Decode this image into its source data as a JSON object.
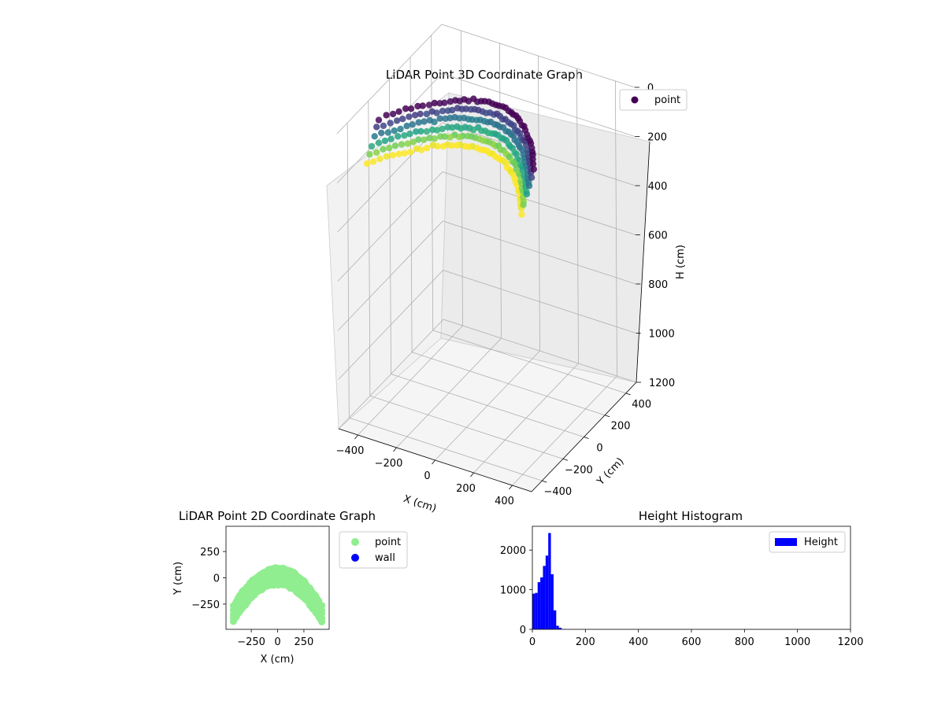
{
  "chart_data": [
    {
      "type": "scatter",
      "projection": "3d",
      "title": "LiDAR Point 3D Coordinate Graph",
      "xlabel": "X (cm)",
      "ylabel": "Y (cm)",
      "zlabel": "H (cm)",
      "xlim": [
        -500,
        500
      ],
      "ylim": [
        -500,
        500
      ],
      "zlim": [
        0,
        1200
      ],
      "z_inverted": true,
      "xticks": [
        "−400",
        "−200",
        "0",
        "200",
        "400"
      ],
      "yticks": [
        "−400",
        "−200",
        "0",
        "200",
        "400"
      ],
      "zticks": [
        "0",
        "200",
        "400",
        "600",
        "800",
        "1000",
        "1200"
      ],
      "grid": true,
      "colormap": "viridis",
      "legend": {
        "position": "top-right",
        "entries": [
          {
            "name": "point",
            "color": "#440154"
          }
        ]
      },
      "series": [
        {
          "name": "point",
          "arc": {
            "x_range": [
              -400,
              400
            ],
            "y_peak": 80,
            "y_end": -280,
            "h_range": [
              10,
              140
            ]
          }
        }
      ]
    },
    {
      "type": "scatter",
      "title": "LiDAR Point 2D Coordinate Graph",
      "xlabel": "X (cm)",
      "ylabel": "Y (cm)",
      "xlim": [
        -490,
        490
      ],
      "ylim": [
        -490,
        490
      ],
      "xticks": [
        "−250",
        "0",
        "250"
      ],
      "yticks": [
        "−250",
        "0",
        "250"
      ],
      "legend": {
        "position": "right",
        "entries": [
          {
            "name": "point",
            "color": "#90ee90"
          },
          {
            "name": "wall",
            "color": "#0000ff"
          }
        ]
      },
      "series": [
        {
          "name": "point",
          "color": "#90ee90",
          "arc": {
            "x_range": [
              -420,
              420
            ],
            "y_peak": 90,
            "y_end": -270,
            "band_width": 150
          }
        },
        {
          "name": "wall",
          "color": "#0000ff",
          "points": []
        }
      ]
    },
    {
      "type": "histogram",
      "title": "Height Histogram",
      "xlim": [
        0,
        1200
      ],
      "ylim": [
        0,
        2600
      ],
      "xticks": [
        "0",
        "200",
        "400",
        "600",
        "800",
        "1000",
        "1200"
      ],
      "yticks": [
        "0",
        "1000",
        "2000"
      ],
      "legend": {
        "position": "top-right",
        "entries": [
          {
            "name": "Height",
            "color": "#0000ff"
          }
        ]
      },
      "series": [
        {
          "name": "Height",
          "color": "#0000ff",
          "bin_width": 10,
          "bins": [
            {
              "x0": 0,
              "count": 900
            },
            {
              "x0": 10,
              "count": 920
            },
            {
              "x0": 20,
              "count": 1190
            },
            {
              "x0": 30,
              "count": 1310
            },
            {
              "x0": 40,
              "count": 1600
            },
            {
              "x0": 50,
              "count": 1860
            },
            {
              "x0": 60,
              "count": 2430
            },
            {
              "x0": 70,
              "count": 1390
            },
            {
              "x0": 80,
              "count": 480
            },
            {
              "x0": 90,
              "count": 90
            },
            {
              "x0": 100,
              "count": 40
            },
            {
              "x0": 110,
              "count": 10
            },
            {
              "x0": 120,
              "count": 5
            }
          ]
        }
      ]
    }
  ]
}
